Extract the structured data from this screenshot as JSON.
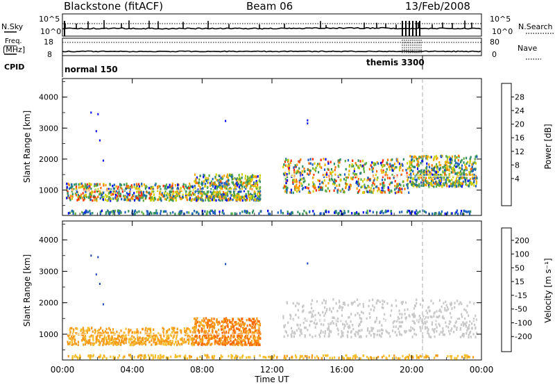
{
  "header": {
    "station": "Blackstone (fitACF)",
    "beam": "Beam 06",
    "date": "13/Feb/2008"
  },
  "summary_panels": {
    "nsky_label": "N.Sky",
    "nsearch_label": "N.Search",
    "nsky_ticks": [
      "10^5",
      "10^0"
    ],
    "nsearch_ticks": [
      "10^5",
      "10^0"
    ],
    "freq_label": "Freq.",
    "freq_unit": "[MHz]",
    "freq_ticks": [
      "18",
      "8"
    ],
    "nave_label": "Nave",
    "nave_ticks": [
      "80",
      "0"
    ],
    "cpid_label": "CPID",
    "modes": [
      {
        "name": "normal 150",
        "start_h": 0,
        "end_h": 20.7
      },
      {
        "name": "themis 3300",
        "start_h": 20.7,
        "end_h": 24
      }
    ]
  },
  "colors": {
    "power_scale": [
      "#0000ff",
      "#1f5fbf",
      "#2f8f5f",
      "#5faf3f",
      "#cfcf00",
      "#f7a800",
      "#ff6e00",
      "#ff2a00",
      "#ff0000"
    ],
    "velocity_scale": [
      "#1e3fb4",
      "#2f7f5f",
      "#4faf3f",
      "#8fd84f",
      "#c8c8c8",
      "#f5c030",
      "#f79a18",
      "#ff6a00",
      "#ff2000"
    ]
  },
  "chart_data": [
    {
      "type": "heatmap",
      "name": "power",
      "ylabel": "Slant Range [km]",
      "xlim": [
        0,
        24
      ],
      "ylim": [
        180,
        4600
      ],
      "yticks": [
        "1000",
        "2000",
        "3000",
        "4000"
      ],
      "colorbar_label": "Power [dB]",
      "colorbar_ticks": [
        "28",
        "24",
        "20",
        "16",
        "12",
        "8",
        "4"
      ],
      "scatter": [
        {
          "x_range": [
            0.2,
            7.5
          ],
          "y_range": [
            650,
            1200
          ],
          "level_range": [
            4,
            26
          ]
        },
        {
          "x_range": [
            7.5,
            11.3
          ],
          "y_range": [
            650,
            1500
          ],
          "level_range": [
            4,
            22
          ]
        },
        {
          "x_range": [
            12.6,
            19.8
          ],
          "y_range": [
            900,
            2000
          ],
          "level_range": [
            4,
            26
          ]
        },
        {
          "x_range": [
            19.8,
            23.7
          ],
          "y_range": [
            1100,
            2100
          ],
          "level_range": [
            4,
            22
          ]
        },
        {
          "x_range": [
            0.3,
            23.8
          ],
          "y_range": [
            220,
            330
          ],
          "level_range": [
            4,
            12
          ]
        }
      ],
      "isolated_points": [
        [
          1.6,
          3500
        ],
        [
          2.0,
          3450
        ],
        [
          9.3,
          3230
        ],
        [
          14.0,
          3250
        ],
        [
          14.0,
          3150
        ],
        [
          1.9,
          2900
        ],
        [
          2.1,
          2600
        ],
        [
          2.3,
          1950
        ]
      ]
    },
    {
      "type": "heatmap",
      "name": "velocity",
      "xlabel": "Time UT",
      "ylabel": "Slant Range [km]",
      "xlim": [
        0,
        24
      ],
      "ylim": [
        180,
        4600
      ],
      "xticks": [
        "00:00",
        "04:00",
        "08:00",
        "12:00",
        "16:00",
        "20:00",
        "00:00"
      ],
      "yticks": [
        "1000",
        "2000",
        "3000",
        "4000"
      ],
      "colorbar_label": "Velocity [m s⁻¹]",
      "colorbar_ticks": [
        "200",
        "100",
        "50",
        "15",
        "-15",
        "-50",
        "-100",
        "-200"
      ],
      "scatter": [
        {
          "x_range": [
            0.2,
            7.5
          ],
          "y_range": [
            650,
            1200
          ],
          "level_range": [
            -100,
            -30
          ]
        },
        {
          "x_range": [
            7.5,
            11.3
          ],
          "y_range": [
            650,
            1500
          ],
          "level_range": [
            -150,
            -40
          ]
        },
        {
          "x_range": [
            12.6,
            23.7
          ],
          "y_range": [
            900,
            2100
          ],
          "level_range": [
            -15,
            15
          ]
        },
        {
          "x_range": [
            0.3,
            23.8
          ],
          "y_range": [
            220,
            330
          ],
          "level_range": [
            -60,
            -20
          ]
        }
      ],
      "isolated_points": [
        [
          1.6,
          3500
        ],
        [
          2.0,
          3450
        ],
        [
          9.3,
          3230
        ],
        [
          14.0,
          3250
        ],
        [
          1.9,
          2900
        ],
        [
          2.1,
          2600
        ],
        [
          2.3,
          1950
        ]
      ]
    }
  ]
}
